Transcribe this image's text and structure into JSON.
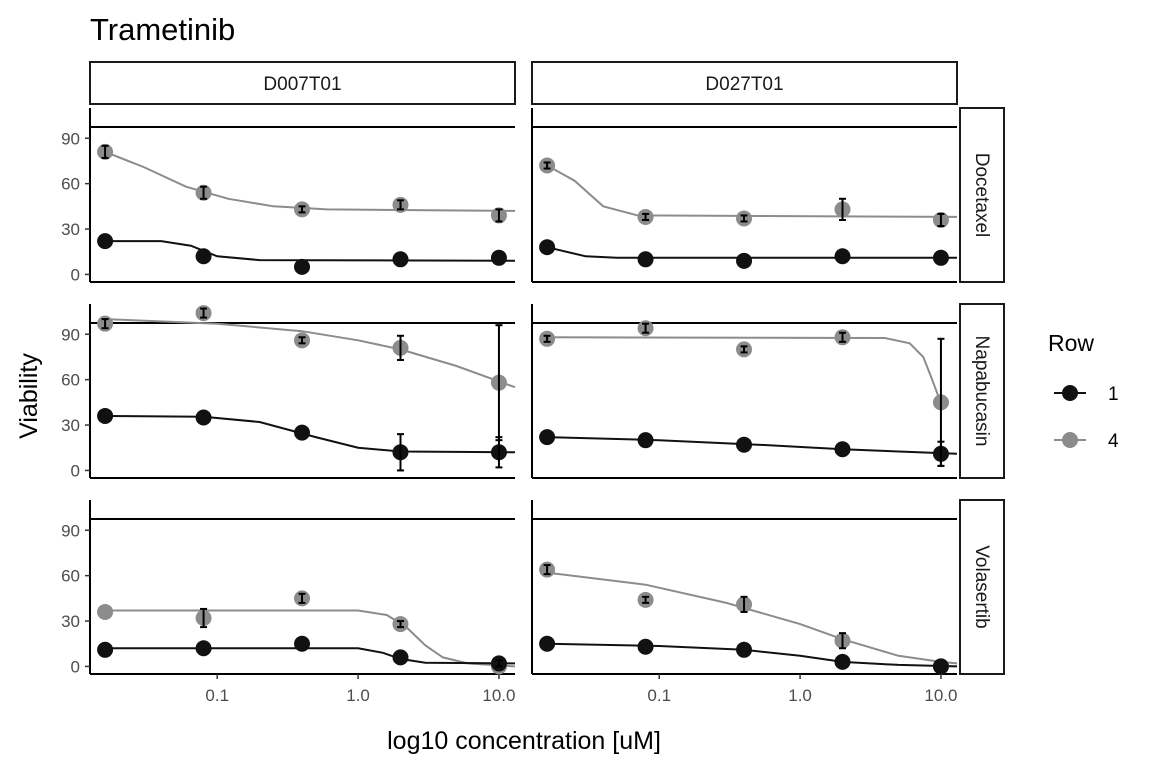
{
  "chart_data": {
    "type": "scatter",
    "title": "Trametinib",
    "xlabel": "log10 concentration [uM]",
    "ylabel": "Viability",
    "x_scale": "log10",
    "x_ticks": [
      0.1,
      1.0,
      10.0
    ],
    "x_tick_labels": [
      "0.1",
      "1.0",
      "10.0"
    ],
    "xlim": [
      0.0125,
      13
    ],
    "y_ticks": [
      0,
      30,
      60,
      90
    ],
    "ylim": [
      -5,
      110
    ],
    "grid": false,
    "columns": [
      "D007T01",
      "D027T01"
    ],
    "rows": [
      "Docetaxel",
      "Napabucasin",
      "Volasertib"
    ],
    "legend": {
      "title": "Row",
      "position": "right",
      "entries": [
        {
          "label": "1",
          "color": "#111111"
        },
        {
          "label": "4",
          "color": "#8c8c8c"
        }
      ]
    },
    "colors": {
      "1": "#111111",
      "4": "#8c8c8c"
    },
    "panels": [
      {
        "column": "D007T01",
        "row": "Docetaxel",
        "series": [
          {
            "legend": "1",
            "points": [
              [
                0.016,
                22,
                0
              ],
              [
                0.08,
                12,
                0
              ],
              [
                0.4,
                5,
                0
              ],
              [
                2,
                10,
                0
              ],
              [
                10,
                11,
                0
              ]
            ],
            "curve": [
              [
                0.016,
                22
              ],
              [
                0.04,
                22
              ],
              [
                0.065,
                19
              ],
              [
                0.1,
                12
              ],
              [
                0.2,
                9.5
              ],
              [
                13,
                9
              ]
            ]
          },
          {
            "legend": "4",
            "points": [
              [
                0.016,
                81,
                4
              ],
              [
                0.08,
                54,
                4
              ],
              [
                0.4,
                43,
                2
              ],
              [
                2,
                46,
                3
              ],
              [
                10,
                39,
                4
              ]
            ],
            "curve": [
              [
                0.016,
                81
              ],
              [
                0.03,
                71
              ],
              [
                0.06,
                58
              ],
              [
                0.12,
                50
              ],
              [
                0.25,
                45
              ],
              [
                0.6,
                43
              ],
              [
                13,
                42
              ]
            ]
          }
        ]
      },
      {
        "column": "D027T01",
        "row": "Docetaxel",
        "series": [
          {
            "legend": "1",
            "points": [
              [
                0.016,
                18,
                0
              ],
              [
                0.08,
                10,
                0
              ],
              [
                0.4,
                9,
                0
              ],
              [
                2,
                12,
                0
              ],
              [
                10,
                11,
                0
              ]
            ],
            "curve": [
              [
                0.016,
                18
              ],
              [
                0.03,
                12
              ],
              [
                0.05,
                11
              ],
              [
                13,
                11
              ]
            ]
          },
          {
            "legend": "4",
            "points": [
              [
                0.016,
                72,
                2
              ],
              [
                0.08,
                38,
                2
              ],
              [
                0.4,
                37,
                2
              ],
              [
                2,
                43,
                7
              ],
              [
                10,
                36,
                4
              ]
            ],
            "curve": [
              [
                0.016,
                72
              ],
              [
                0.025,
                62
              ],
              [
                0.04,
                45
              ],
              [
                0.07,
                39
              ],
              [
                13,
                38
              ]
            ]
          }
        ]
      },
      {
        "column": "D007T01",
        "row": "Napabucasin",
        "series": [
          {
            "legend": "1",
            "points": [
              [
                0.016,
                36,
                0
              ],
              [
                0.08,
                35,
                0
              ],
              [
                0.4,
                25,
                0
              ],
              [
                2,
                12,
                12
              ],
              [
                10,
                12,
                10
              ]
            ],
            "curve": [
              [
                0.016,
                36
              ],
              [
                0.08,
                35.5
              ],
              [
                0.2,
                32
              ],
              [
                0.5,
                22
              ],
              [
                1,
                15
              ],
              [
                2,
                12.5
              ],
              [
                13,
                12
              ]
            ]
          },
          {
            "legend": "4",
            "points": [
              [
                0.016,
                97,
                3
              ],
              [
                0.08,
                104,
                3
              ],
              [
                0.4,
                86,
                2
              ],
              [
                2,
                81,
                8
              ],
              [
                10,
                58,
                38
              ]
            ],
            "curve": [
              [
                0.016,
                100
              ],
              [
                0.1,
                97
              ],
              [
                0.4,
                92
              ],
              [
                1,
                86
              ],
              [
                2,
                80
              ],
              [
                5,
                69
              ],
              [
                13,
                55
              ]
            ]
          }
        ]
      },
      {
        "column": "D027T01",
        "row": "Napabucasin",
        "series": [
          {
            "legend": "1",
            "points": [
              [
                0.016,
                22,
                0
              ],
              [
                0.08,
                20,
                0
              ],
              [
                0.4,
                17,
                0
              ],
              [
                2,
                14,
                0
              ],
              [
                10,
                11,
                8
              ]
            ],
            "curve": [
              [
                0.016,
                22
              ],
              [
                0.1,
                20
              ],
              [
                0.5,
                17
              ],
              [
                2,
                14
              ],
              [
                13,
                11
              ]
            ]
          },
          {
            "legend": "4",
            "points": [
              [
                0.016,
                87,
                2
              ],
              [
                0.08,
                94,
                3
              ],
              [
                0.4,
                80,
                2
              ],
              [
                2,
                88,
                3
              ],
              [
                10,
                45,
                42
              ]
            ],
            "curve": [
              [
                0.016,
                88
              ],
              [
                4,
                87.5
              ],
              [
                6,
                84
              ],
              [
                7.5,
                75
              ],
              [
                8.5,
                62
              ],
              [
                9.5,
                50
              ],
              [
                10,
                45
              ]
            ]
          }
        ]
      },
      {
        "column": "D007T01",
        "row": "Volasertib",
        "series": [
          {
            "legend": "1",
            "points": [
              [
                0.016,
                11,
                0
              ],
              [
                0.08,
                12,
                0
              ],
              [
                0.4,
                15,
                0
              ],
              [
                2,
                6,
                0
              ],
              [
                10,
                2,
                2
              ]
            ],
            "curve": [
              [
                0.016,
                12
              ],
              [
                1,
                12
              ],
              [
                1.5,
                9
              ],
              [
                2,
                5
              ],
              [
                3,
                2.5
              ],
              [
                13,
                2
              ]
            ]
          },
          {
            "legend": "4",
            "points": [
              [
                0.016,
                36,
                0
              ],
              [
                0.08,
                32,
                6
              ],
              [
                0.4,
                45,
                3
              ],
              [
                2,
                28,
                2
              ],
              [
                10,
                0,
                0
              ]
            ],
            "curve": [
              [
                0.016,
                37
              ],
              [
                1,
                37
              ],
              [
                1.6,
                34
              ],
              [
                2.2,
                26
              ],
              [
                3,
                14
              ],
              [
                4,
                6
              ],
              [
                6,
                2
              ],
              [
                13,
                0
              ]
            ]
          }
        ]
      },
      {
        "column": "D027T01",
        "row": "Volasertib",
        "series": [
          {
            "legend": "1",
            "points": [
              [
                0.016,
                15,
                0
              ],
              [
                0.08,
                13,
                0
              ],
              [
                0.4,
                11,
                0
              ],
              [
                2,
                3,
                0
              ],
              [
                10,
                0,
                0
              ]
            ],
            "curve": [
              [
                0.016,
                15
              ],
              [
                0.1,
                13.5
              ],
              [
                0.4,
                11
              ],
              [
                1,
                7
              ],
              [
                2,
                3
              ],
              [
                5,
                1
              ],
              [
                13,
                0
              ]
            ]
          },
          {
            "legend": "4",
            "points": [
              [
                0.016,
                64,
                3
              ],
              [
                0.08,
                44,
                2
              ],
              [
                0.4,
                41,
                5
              ],
              [
                2,
                17,
                5
              ],
              [
                10,
                0,
                0
              ]
            ],
            "curve": [
              [
                0.016,
                62
              ],
              [
                0.08,
                54
              ],
              [
                0.3,
                42
              ],
              [
                1,
                28
              ],
              [
                2,
                18
              ],
              [
                5,
                7
              ],
              [
                10,
                3
              ],
              [
                13,
                2
              ]
            ]
          }
        ]
      }
    ]
  }
}
